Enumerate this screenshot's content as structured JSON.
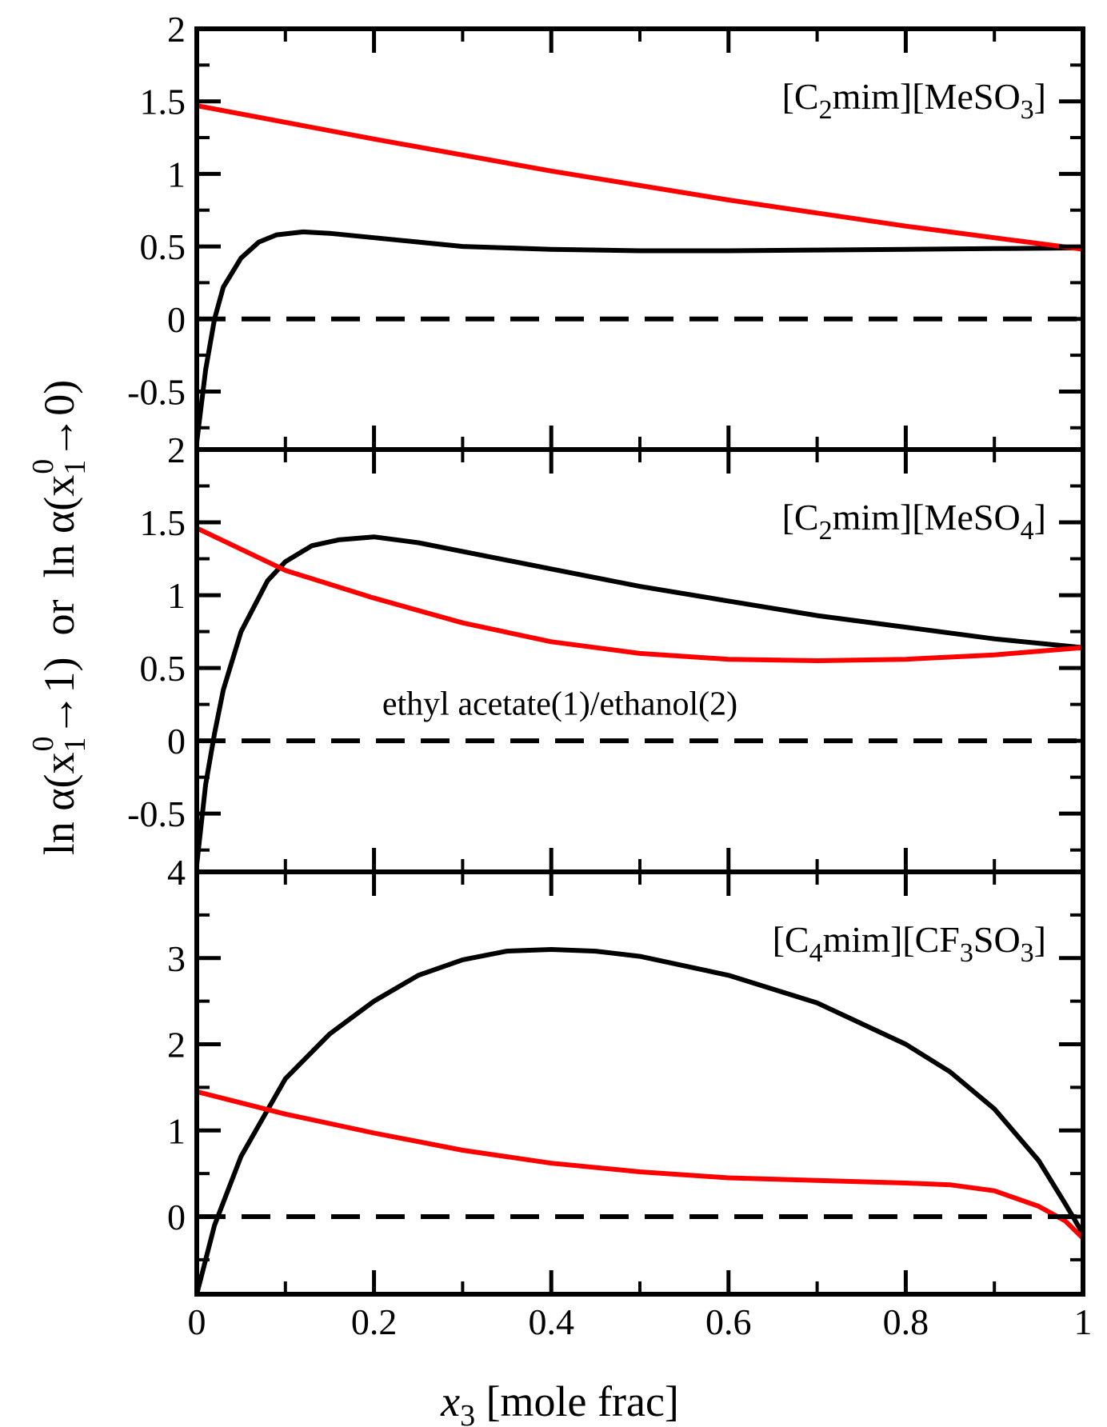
{
  "chart_data": {
    "type": "line",
    "xlabel": {
      "var": "x",
      "sub": "3",
      "rest": " [mole frac]"
    },
    "ylabel": {
      "part1_pre": "ln α(x",
      "part1_sub": "1",
      "part1_sup": "0",
      "part1_post": "→1)",
      "sep": "  or  ",
      "part2_pre": "ln α(x",
      "part2_sub": "1",
      "part2_sup": "0",
      "part2_post": "→0)"
    },
    "xlim": [
      0,
      1
    ],
    "xticks": [
      "0",
      "0.2",
      "0.4",
      "0.6",
      "0.8",
      "1"
    ],
    "panels": [
      {
        "label": {
          "a": "[C",
          "s1": "2",
          "b": "mim][MeSO",
          "s2": "3",
          "c": "]"
        },
        "ylim": [
          -0.9,
          2
        ],
        "yticks": [
          "2",
          "1.5",
          "1",
          "0.5",
          "0",
          "-0.5"
        ],
        "tick_values": [
          2,
          1.5,
          1,
          0.5,
          0,
          -0.5
        ],
        "annotation": "",
        "series": [
          {
            "name": "ln α(x1⁰→1)",
            "color": "#000000",
            "x": [
              0,
              0.01,
              0.02,
              0.03,
              0.05,
              0.07,
              0.09,
              0.12,
              0.15,
              0.2,
              0.25,
              0.3,
              0.4,
              0.5,
              0.6,
              0.7,
              0.8,
              0.9,
              1.0
            ],
            "y": [
              -0.85,
              -0.35,
              0.0,
              0.22,
              0.42,
              0.53,
              0.58,
              0.6,
              0.59,
              0.56,
              0.53,
              0.5,
              0.48,
              0.47,
              0.47,
              0.475,
              0.48,
              0.485,
              0.49
            ]
          },
          {
            "name": "ln α(x1⁰→0)",
            "color": "#ff0000",
            "x": [
              0,
              0.2,
              0.4,
              0.6,
              0.8,
              1.0
            ],
            "y": [
              1.47,
              1.24,
              1.02,
              0.82,
              0.64,
              0.48
            ]
          },
          {
            "name": "zero",
            "color": "#000000",
            "dashed": true,
            "x": [
              0,
              1
            ],
            "y": [
              0,
              0
            ]
          }
        ]
      },
      {
        "label": {
          "a": "[C",
          "s1": "2",
          "b": "mim][MeSO",
          "s2": "4",
          "c": "]"
        },
        "ylim": [
          -0.9,
          2
        ],
        "yticks": [
          "2",
          "1.5",
          "1",
          "0.5",
          "0",
          "-0.5"
        ],
        "tick_values": [
          2,
          1.5,
          1,
          0.5,
          0,
          -0.5
        ],
        "annotation": "ethyl acetate(1)/ethanol(2)",
        "series": [
          {
            "name": "ln α(x1⁰→1)",
            "color": "#000000",
            "x": [
              0,
              0.01,
              0.02,
              0.03,
              0.05,
              0.08,
              0.1,
              0.13,
              0.16,
              0.2,
              0.25,
              0.3,
              0.4,
              0.5,
              0.6,
              0.7,
              0.8,
              0.9,
              1.0
            ],
            "y": [
              -0.85,
              -0.3,
              0.05,
              0.35,
              0.75,
              1.1,
              1.23,
              1.34,
              1.38,
              1.4,
              1.36,
              1.3,
              1.18,
              1.06,
              0.96,
              0.86,
              0.78,
              0.7,
              0.64
            ]
          },
          {
            "name": "ln α(x1⁰→0)",
            "color": "#ff0000",
            "x": [
              0,
              0.1,
              0.2,
              0.3,
              0.4,
              0.5,
              0.6,
              0.7,
              0.8,
              0.9,
              1.0
            ],
            "y": [
              1.46,
              1.17,
              0.98,
              0.81,
              0.68,
              0.6,
              0.56,
              0.55,
              0.56,
              0.59,
              0.64
            ]
          },
          {
            "name": "zero",
            "color": "#000000",
            "dashed": true,
            "x": [
              0,
              1
            ],
            "y": [
              0,
              0
            ]
          }
        ]
      },
      {
        "label": {
          "a": "[C",
          "s1": "4",
          "b": "mim][CF",
          "s2": "3",
          "c": "SO",
          "s3": "3",
          "d": "]"
        },
        "ylim": [
          -0.9,
          4
        ],
        "yticks": [
          "4",
          "3",
          "2",
          "1",
          "0"
        ],
        "tick_values": [
          4,
          3,
          2,
          1,
          0
        ],
        "annotation": "",
        "series": [
          {
            "name": "ln α(x1⁰→1)",
            "color": "#000000",
            "x": [
              0,
              0.02,
              0.05,
              0.1,
              0.15,
              0.2,
              0.25,
              0.3,
              0.35,
              0.4,
              0.45,
              0.5,
              0.6,
              0.7,
              0.8,
              0.85,
              0.9,
              0.95,
              0.98,
              1.0
            ],
            "y": [
              -0.9,
              -0.1,
              0.7,
              1.6,
              2.12,
              2.5,
              2.8,
              2.98,
              3.08,
              3.1,
              3.08,
              3.02,
              2.8,
              2.48,
              2.0,
              1.68,
              1.25,
              0.65,
              0.15,
              -0.2
            ]
          },
          {
            "name": "ln α(x1⁰→0)",
            "color": "#ff0000",
            "x": [
              0,
              0.05,
              0.1,
              0.2,
              0.3,
              0.4,
              0.5,
              0.6,
              0.7,
              0.8,
              0.85,
              0.9,
              0.95,
              0.98,
              1.0
            ],
            "y": [
              1.45,
              1.32,
              1.19,
              0.97,
              0.77,
              0.62,
              0.52,
              0.45,
              0.42,
              0.39,
              0.37,
              0.3,
              0.12,
              -0.05,
              -0.25
            ]
          },
          {
            "name": "zero",
            "color": "#000000",
            "dashed": true,
            "x": [
              0,
              1
            ],
            "y": [
              0,
              0
            ]
          }
        ]
      }
    ]
  }
}
